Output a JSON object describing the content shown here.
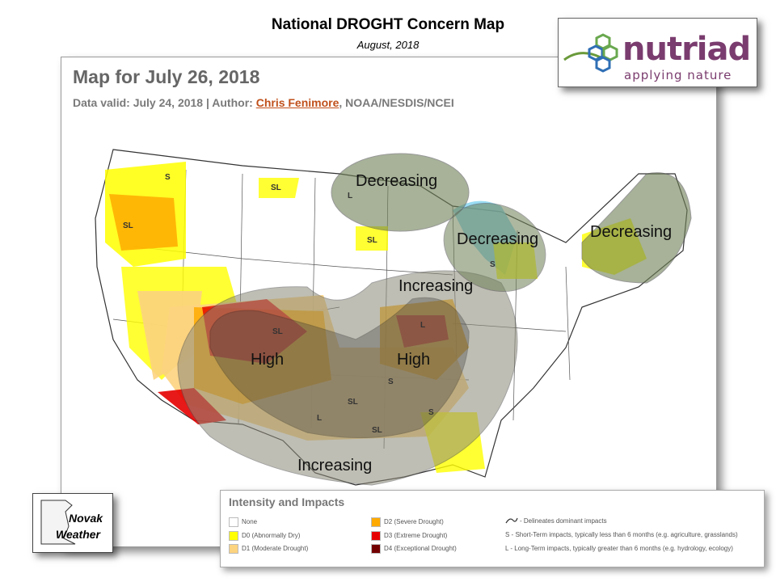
{
  "header": {
    "title": "National DROGHT Concern Map",
    "subtitle": "August, 2018"
  },
  "map": {
    "heading": "Map for July 26, 2018",
    "meta_prefix": "Data valid: July 24, 2018 | Author: ",
    "meta_author": "Chris Fenimore",
    "meta_suffix": ", NOAA/NESDIS/NCEI",
    "region_labels": {
      "decreasing_north": "Decreasing",
      "decreasing_lakes": "Decreasing",
      "decreasing_ne": "Decreasing",
      "increasing_mid": "Increasing",
      "increasing_south": "Increasing",
      "high_west": "High",
      "high_east": "High"
    },
    "impact_marks": [
      "S",
      "SL",
      "SL",
      "SL",
      "L",
      "SL",
      "S",
      "SL",
      "L",
      "S",
      "L",
      "SL",
      "S"
    ]
  },
  "logos": {
    "nutriad_word": "nutriad",
    "nutriad_tag": "applying nature",
    "novak_line1": "Novak",
    "novak_line2": "Weather"
  },
  "legend": {
    "title": "Intensity and Impacts",
    "items": [
      {
        "label": "None",
        "color": "#ffffff"
      },
      {
        "label": "D0 (Abnormally Dry)",
        "color": "#ffff00"
      },
      {
        "label": "D1 (Moderate Drought)",
        "color": "#fcd37f"
      },
      {
        "label": "D2 (Severe Drought)",
        "color": "#ffaa00"
      },
      {
        "label": "D3 (Extreme Drought)",
        "color": "#e60000"
      },
      {
        "label": "D4 (Exceptional Drought)",
        "color": "#730000"
      }
    ],
    "impacts": [
      "- Delineates dominant impacts",
      "S - Short-Term impacts, typically less than 6 months (e.g. agriculture, grasslands)",
      "L - Long-Term impacts, typically greater than 6 months (e.g. hydrology, ecology)"
    ]
  },
  "colors": {
    "concern_overlay": "#6d7f55",
    "increasing_overlay": "#8c8a78",
    "high_overlay": "#3f3f3f",
    "lakes": "#7fd3f0",
    "logo_purple": "#7a3c6e"
  }
}
